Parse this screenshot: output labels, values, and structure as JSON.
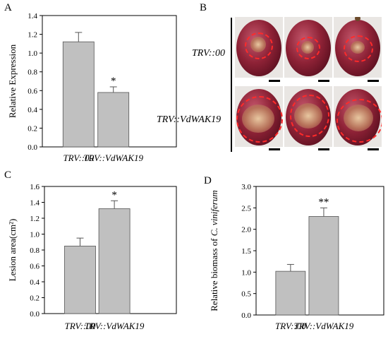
{
  "panels": {
    "A": {
      "letter": "A"
    },
    "B": {
      "letter": "B",
      "row_labels": [
        "TRV::00",
        "TRV::VdWAK19"
      ]
    },
    "C": {
      "letter": "C"
    },
    "D": {
      "letter": "D"
    }
  },
  "chart_data": [
    {
      "panel": "A",
      "type": "bar",
      "categories": [
        "TRV::00",
        "TRV::VdWAK19"
      ],
      "values": [
        1.12,
        0.58
      ],
      "errors": [
        0.1,
        0.06
      ],
      "significance": [
        "",
        "*"
      ],
      "ylabel": "Relative Expression",
      "ylabel_parts": [
        "Relative Expression"
      ],
      "ylim": [
        0,
        1.4
      ],
      "yticks": [
        "0.0",
        "0.2",
        "0.4",
        "0.6",
        "0.8",
        "1.0",
        "1.2",
        "1.4"
      ],
      "bar_color": "#c0c0c0"
    },
    {
      "panel": "C",
      "type": "bar",
      "categories": [
        "TRV::00",
        "TRV::VdWAK19"
      ],
      "values": [
        0.85,
        1.32
      ],
      "errors": [
        0.1,
        0.1
      ],
      "significance": [
        "",
        "*"
      ],
      "ylabel": "Lesion area(cm²)",
      "ylabel_parts": [
        "Lesion area(cm²)"
      ],
      "ylim": [
        0,
        1.6
      ],
      "yticks": [
        "0.0",
        "0.2",
        "0.4",
        "0.6",
        "0.8",
        "1.0",
        "1.2",
        "1.4",
        "1.6"
      ],
      "bar_color": "#c0c0c0"
    },
    {
      "panel": "D",
      "type": "bar",
      "categories": [
        "TRV::00",
        "TRV::VdWAK19"
      ],
      "values": [
        1.02,
        2.3
      ],
      "errors": [
        0.16,
        0.2
      ],
      "significance": [
        "",
        "**"
      ],
      "ylabel": "Relative biomass of C. viniferum",
      "ylabel_parts": [
        "Relative biomass of ",
        "C. viniferum"
      ],
      "ylim": [
        0,
        3.0
      ],
      "yticks": [
        "0.0",
        "0.5",
        "1.0",
        "1.5",
        "2.0",
        "2.5",
        "3.0"
      ],
      "bar_color": "#c0c0c0"
    }
  ]
}
